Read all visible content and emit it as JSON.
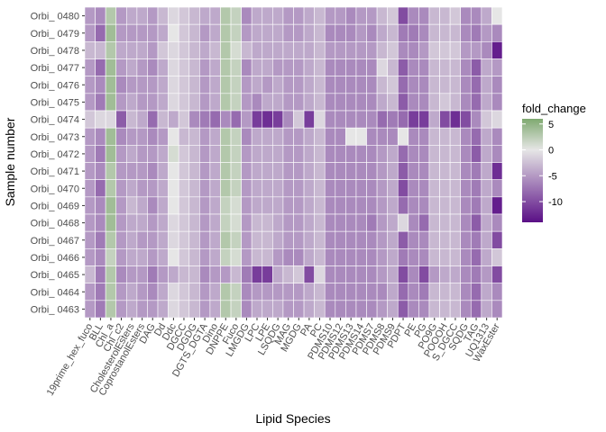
{
  "chart_data": {
    "type": "heatmap",
    "title": "",
    "xlabel": "Lipid Species",
    "ylabel": "Sample number",
    "x_categories": [
      "19prime_hex_fuco",
      "BLL",
      "Chl_a",
      "Chl_c2",
      "CholesterolEsters",
      "CoprostanolEsters",
      "DAG",
      "Dd",
      "Ddc",
      "DGCC",
      "DGDG",
      "DGTS_DGTA",
      "Dino",
      "DNPPE",
      "Fuco",
      "LMGDG",
      "LPC",
      "LPE",
      "LSQDG",
      "MAG",
      "MGDG",
      "PA",
      "PC",
      "PDMS10",
      "PDMS12",
      "PDMS13",
      "PDMS14",
      "PDMS7",
      "PDMS8",
      "PDMS9",
      "PDPT",
      "PE",
      "PG",
      "PO9G",
      "POOOH",
      "S_DGCC",
      "SQDG",
      "TAG",
      "UQ1313",
      "WaxEster"
    ],
    "y_categories": [
      "Orbi_ 0480",
      "Orbi_ 0479",
      "Orbi_ 0478",
      "Orbi_ 0477",
      "Orbi_ 0476",
      "Orbi_ 0475",
      "Orbi_ 0474",
      "Orbi_ 0473",
      "Orbi_ 0472",
      "Orbi_ 0471",
      "Orbi_ 0470",
      "Orbi_ 0469",
      "Orbi_ 0468",
      "Orbi_ 0467",
      "Orbi_ 0466",
      "Orbi_ 0465",
      "Orbi_ 0464",
      "Orbi_ 0463"
    ],
    "values": [
      [
        -5,
        -6,
        3,
        -5,
        -4,
        -4,
        -5,
        -3,
        -1,
        -2,
        -3,
        -4,
        -4,
        3,
        2,
        -6,
        -4,
        -4,
        -4,
        -5,
        -5,
        -4,
        -3,
        -5,
        -5,
        -6,
        -5,
        -5,
        -3,
        -2,
        -10,
        -6,
        -6,
        -3,
        -3,
        -2,
        -6,
        -6,
        -4,
        0
      ],
      [
        -5,
        -8,
        4,
        -5,
        -5,
        -5,
        -5,
        -4,
        0,
        -2,
        -3,
        -5,
        -4,
        3,
        2,
        -5,
        -4,
        -4,
        -4,
        -5,
        -5,
        -4,
        -3,
        -6,
        -6,
        -6,
        -5,
        -6,
        -4,
        -3,
        -7,
        -7,
        -6,
        -3,
        -3,
        -3,
        -6,
        -7,
        -5,
        -6
      ],
      [
        -3,
        -3,
        3,
        -4,
        -4,
        -4,
        -5,
        -2,
        -1,
        -2,
        -3,
        -4,
        -3,
        3,
        1,
        -3,
        -4,
        -4,
        -4,
        -4,
        -4,
        -4,
        -3,
        -5,
        -5,
        -5,
        -5,
        -5,
        -3,
        -2,
        -6,
        -6,
        -5,
        -2,
        -2,
        -2,
        -5,
        -5,
        -6,
        -13
      ],
      [
        -5,
        -8,
        4,
        -5,
        -4,
        -5,
        -6,
        -4,
        -1,
        -2,
        -3,
        -5,
        -4,
        3,
        2,
        -6,
        -4,
        -4,
        -5,
        -5,
        -5,
        -4,
        -3,
        -6,
        -6,
        -6,
        -6,
        -6,
        -1,
        -3,
        -9,
        -6,
        -6,
        -3,
        -3,
        -3,
        -6,
        -9,
        -4,
        -5
      ],
      [
        -5,
        -6,
        4,
        -6,
        -5,
        -5,
        -5,
        -4,
        -1,
        -2,
        -3,
        -5,
        -4,
        3,
        2,
        -5,
        -4,
        -5,
        -4,
        -5,
        -5,
        -4,
        -3,
        -6,
        -6,
        -6,
        -6,
        -6,
        -3,
        -2,
        -8,
        -6,
        -6,
        -3,
        -3,
        -3,
        -6,
        -8,
        -4,
        -6
      ],
      [
        -5,
        -7,
        4,
        -5,
        -4,
        -5,
        -5,
        -4,
        -1,
        -2,
        -3,
        -5,
        -4,
        3,
        2,
        -5,
        -6,
        -4,
        -4,
        -5,
        -5,
        -4,
        -3,
        -6,
        -6,
        -6,
        -6,
        -6,
        -4,
        -3,
        -9,
        -6,
        -6,
        -3,
        -2,
        -3,
        -6,
        -8,
        -4,
        -6
      ],
      [
        -2,
        -1,
        -1,
        -9,
        -3,
        -4,
        -8,
        -3,
        -4,
        -2,
        -6,
        -7,
        -8,
        -6,
        -8,
        -5,
        -11,
        -12,
        -11,
        -6,
        -2,
        -11,
        -1,
        -6,
        -6,
        -6,
        -6,
        -6,
        -8,
        -7,
        -8,
        -11,
        -11,
        -4,
        -10,
        -12,
        -10,
        -6,
        -2,
        -1
      ],
      [
        -5,
        -6,
        4,
        -6,
        -5,
        -5,
        -6,
        -5,
        0,
        -3,
        -3,
        -5,
        -4,
        3,
        2,
        -6,
        -4,
        -4,
        -4,
        -5,
        -5,
        -4,
        -3,
        -6,
        -6,
        0,
        0,
        -6,
        -6,
        -6,
        0,
        -6,
        -6,
        -3,
        -3,
        -3,
        -6,
        -8,
        -4,
        -6
      ],
      [
        -5,
        -7,
        4,
        -5,
        -4,
        -5,
        -5,
        -4,
        1,
        -2,
        -3,
        -5,
        -4,
        3,
        2,
        -5,
        -4,
        -4,
        -4,
        -5,
        -5,
        -4,
        -3,
        -6,
        -6,
        -6,
        -6,
        -6,
        -5,
        -4,
        -8,
        -6,
        -6,
        -3,
        -3,
        -3,
        -6,
        -9,
        -4,
        -6
      ],
      [
        -5,
        -6,
        3,
        -5,
        -5,
        -5,
        -6,
        -4,
        0,
        -2,
        -3,
        -5,
        -4,
        3,
        2,
        -5,
        -4,
        -4,
        -4,
        -5,
        -5,
        -4,
        -3,
        -6,
        -6,
        -6,
        -6,
        -6,
        -5,
        -4,
        -9,
        -6,
        -6,
        -3,
        -3,
        -3,
        -6,
        -7,
        -4,
        -12
      ],
      [
        -5,
        -8,
        3,
        -5,
        -4,
        -5,
        -5,
        -4,
        0,
        -2,
        -3,
        -5,
        -4,
        3,
        2,
        -5,
        -4,
        -4,
        -4,
        -5,
        -5,
        -4,
        -3,
        -6,
        -6,
        -6,
        -6,
        -6,
        -5,
        -4,
        -10,
        -6,
        -6,
        -3,
        -3,
        -3,
        -6,
        -7,
        -4,
        -6
      ],
      [
        -5,
        -6,
        4,
        -5,
        -3,
        -4,
        -6,
        -4,
        0,
        -2,
        -3,
        -5,
        -4,
        2,
        1,
        -5,
        -4,
        -4,
        -4,
        -5,
        -5,
        -4,
        -3,
        -6,
        -6,
        -6,
        -6,
        -6,
        -5,
        -4,
        -8,
        -6,
        -6,
        -3,
        -3,
        -3,
        -6,
        -7,
        -4,
        -13
      ],
      [
        -5,
        -6,
        4,
        -5,
        -4,
        -4,
        -5,
        -4,
        -1,
        -2,
        -3,
        -5,
        -4,
        2,
        1,
        -5,
        -3,
        -3,
        -4,
        -5,
        -5,
        -4,
        -3,
        -6,
        -6,
        -6,
        -6,
        -7,
        -5,
        -4,
        -1,
        -6,
        -8,
        -3,
        -3,
        -3,
        -6,
        -9,
        -4,
        -6
      ],
      [
        -5,
        -7,
        3,
        -5,
        -4,
        -5,
        -5,
        -4,
        -1,
        -2,
        -3,
        -5,
        -4,
        3,
        2,
        -5,
        -3,
        -3,
        -4,
        -5,
        -5,
        -4,
        -3,
        -6,
        -6,
        -6,
        -6,
        -6,
        -5,
        -4,
        -9,
        -6,
        -6,
        -3,
        -3,
        -3,
        -6,
        -7,
        -4,
        -10
      ],
      [
        -5,
        -6,
        2,
        -5,
        -4,
        -4,
        -5,
        -4,
        0,
        -2,
        -3,
        -5,
        -4,
        2,
        1,
        -5,
        -3,
        -3,
        -5,
        -6,
        -6,
        -4,
        -3,
        -6,
        -6,
        -6,
        -6,
        -6,
        -5,
        -4,
        -7,
        -6,
        -6,
        -3,
        -3,
        -3,
        -6,
        -8,
        -4,
        -2
      ],
      [
        -3,
        -7,
        3,
        -6,
        -5,
        -5,
        -7,
        -5,
        -4,
        -3,
        -3,
        -6,
        -5,
        -5,
        -3,
        -7,
        -11,
        -11,
        -4,
        -3,
        -2,
        -10,
        -1,
        -6,
        -6,
        -6,
        -6,
        -6,
        -5,
        -4,
        -10,
        -6,
        -10,
        -5,
        -4,
        -4,
        -6,
        -7,
        -5,
        -10
      ],
      [
        -5,
        -7,
        3,
        -5,
        -4,
        -5,
        -6,
        -4,
        -1,
        -2,
        -3,
        -5,
        -4,
        3,
        2,
        -6,
        -5,
        -5,
        -5,
        -5,
        -5,
        -4,
        -3,
        -6,
        -6,
        -6,
        -6,
        -6,
        -6,
        -4,
        -8,
        -6,
        -7,
        -3,
        -3,
        -3,
        -6,
        -8,
        -4,
        -6
      ],
      [
        -5,
        -7,
        3,
        -5,
        -4,
        -5,
        -5,
        -4,
        -1,
        -2,
        -3,
        -5,
        -4,
        3,
        2,
        -6,
        -4,
        -4,
        -4,
        -5,
        -5,
        -4,
        -3,
        -6,
        -6,
        -6,
        -6,
        -6,
        -5,
        -4,
        -9,
        -6,
        -6,
        -3,
        -3,
        -3,
        -6,
        -8,
        -4,
        -6
      ]
    ],
    "legend": {
      "title": "fold_change",
      "breaks": [
        5,
        0,
        -5,
        -10
      ],
      "break_labels": [
        "5",
        "0",
        "-5",
        "-10"
      ],
      "range": [
        -14,
        6
      ],
      "colors": {
        "high": "#7fa970",
        "mid": "#e6e6e6",
        "low": "#5a0f86"
      }
    },
    "grid": false,
    "legend_position": "right",
    "panel_background": "#ebebeb",
    "cell_border": "#ffffff"
  }
}
